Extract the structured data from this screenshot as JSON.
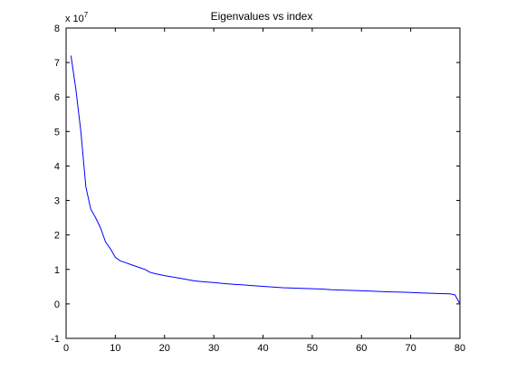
{
  "chart_data": {
    "type": "line",
    "title": "Eigenvalues vs index",
    "xlabel": "",
    "ylabel": "",
    "y_multiplier_base": "x 10",
    "y_multiplier_exponent": "7",
    "xlim": [
      0,
      80
    ],
    "ylim": [
      -1,
      8
    ],
    "grid": false,
    "x_ticks": [
      "0",
      "10",
      "20",
      "30",
      "40",
      "50",
      "60",
      "70",
      "80"
    ],
    "y_ticks": [
      "-1",
      "0",
      "1",
      "2",
      "3",
      "4",
      "5",
      "6",
      "7",
      "8"
    ],
    "line_color": "#0000ff",
    "series": [
      {
        "x": [
          1,
          2,
          3,
          4,
          5,
          6,
          7,
          8,
          9,
          10,
          11,
          12,
          13,
          14,
          15,
          16,
          17,
          18,
          19,
          20,
          22,
          24,
          26,
          28,
          30,
          32,
          34,
          36,
          38,
          40,
          42,
          44,
          46,
          48,
          50,
          52,
          54,
          56,
          58,
          60,
          62,
          64,
          66,
          68,
          70,
          72,
          74,
          76,
          78,
          79,
          80
        ],
        "y": [
          7.2,
          6.2,
          5.0,
          3.4,
          2.75,
          2.5,
          2.2,
          1.8,
          1.6,
          1.35,
          1.25,
          1.2,
          1.15,
          1.1,
          1.05,
          1.0,
          0.92,
          0.88,
          0.85,
          0.82,
          0.77,
          0.72,
          0.67,
          0.64,
          0.62,
          0.59,
          0.57,
          0.55,
          0.53,
          0.51,
          0.49,
          0.47,
          0.46,
          0.45,
          0.44,
          0.43,
          0.41,
          0.4,
          0.39,
          0.38,
          0.37,
          0.36,
          0.35,
          0.34,
          0.33,
          0.32,
          0.31,
          0.3,
          0.29,
          0.26,
          0.0
        ]
      }
    ]
  }
}
